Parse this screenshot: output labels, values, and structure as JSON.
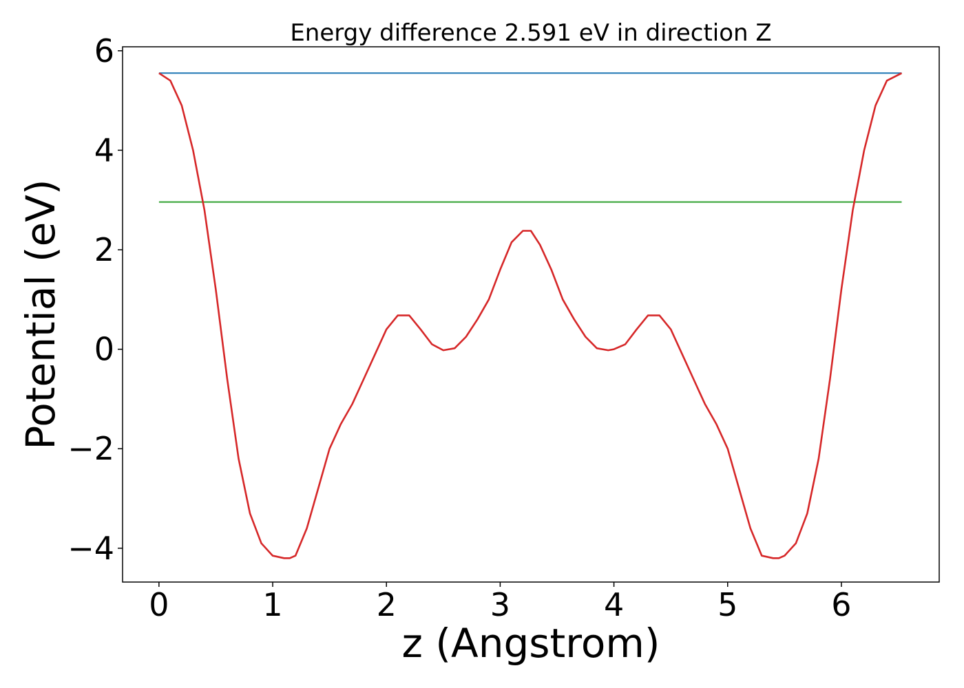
{
  "chart_data": {
    "type": "line",
    "title": "Energy difference 2.591 eV in direction Z",
    "xlabel": "z (Angstrom)",
    "ylabel": "Potential (eV)",
    "xlim": [
      -0.32,
      6.86
    ],
    "ylim": [
      -4.68,
      6.08
    ],
    "xticks": [
      0,
      1,
      2,
      3,
      4,
      5,
      6
    ],
    "yticks": [
      -4,
      -2,
      0,
      2,
      4,
      6
    ],
    "xtick_labels": [
      "0",
      "1",
      "2",
      "3",
      "4",
      "5",
      "6"
    ],
    "ytick_labels": [
      "−4",
      "−2",
      "0",
      "2",
      "4",
      "6"
    ],
    "grid": false,
    "legend": "none",
    "series": [
      {
        "color": "#1f77b4",
        "x": [
          0,
          6.53
        ],
        "y": [
          5.55,
          5.55
        ]
      },
      {
        "color": "#2ca02c",
        "x": [
          0,
          6.53
        ],
        "y": [
          2.96,
          2.96
        ]
      },
      {
        "color": "#d62728",
        "x": [
          0,
          0.1,
          0.2,
          0.3,
          0.4,
          0.5,
          0.6,
          0.7,
          0.8,
          0.9,
          1.0,
          1.1,
          1.15,
          1.2,
          1.3,
          1.4,
          1.5,
          1.6,
          1.7,
          1.8,
          1.9,
          2.0,
          2.1,
          2.2,
          2.3,
          2.4,
          2.5,
          2.6,
          2.7,
          2.8,
          2.9,
          3.0,
          3.1,
          3.2,
          3.27,
          3.35,
          3.45,
          3.55,
          3.65,
          3.75,
          3.85,
          3.95,
          4.0,
          4.1,
          4.2,
          4.3,
          4.4,
          4.5,
          4.6,
          4.7,
          4.8,
          4.9,
          5.0,
          5.1,
          5.2,
          5.3,
          5.4,
          5.45,
          5.5,
          5.6,
          5.7,
          5.8,
          5.9,
          6.0,
          6.1,
          6.2,
          6.3,
          6.4,
          6.53
        ],
        "y": [
          5.55,
          5.4,
          4.9,
          4.0,
          2.8,
          1.2,
          -0.6,
          -2.2,
          -3.3,
          -3.9,
          -4.15,
          -4.2,
          -4.2,
          -4.15,
          -3.6,
          -2.8,
          -2.0,
          -1.5,
          -1.1,
          -0.6,
          -0.1,
          0.4,
          0.68,
          0.68,
          0.4,
          0.1,
          -0.02,
          0.02,
          0.25,
          0.6,
          1.0,
          1.6,
          2.15,
          2.38,
          2.38,
          2.1,
          1.6,
          1.0,
          0.6,
          0.25,
          0.02,
          -0.02,
          0.0,
          0.1,
          0.4,
          0.68,
          0.68,
          0.4,
          -0.1,
          -0.6,
          -1.1,
          -1.5,
          -2.0,
          -2.8,
          -3.6,
          -4.15,
          -4.2,
          -4.2,
          -4.15,
          -3.9,
          -3.3,
          -2.2,
          -0.6,
          1.2,
          2.8,
          4.0,
          4.9,
          5.4,
          5.55
        ]
      }
    ]
  }
}
